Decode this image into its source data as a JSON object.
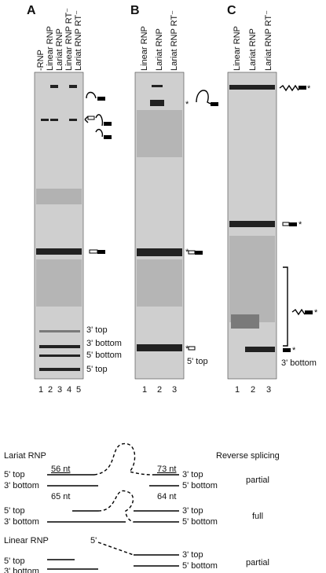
{
  "panels": [
    {
      "label": "A",
      "lanes": [
        "-RNP",
        "Linear RNP",
        "Lariat RNP",
        "Linear RNP RT⁻",
        "Lariat RNP RT⁻"
      ],
      "lane_numbers": [
        1,
        2,
        3,
        4,
        5
      ],
      "annotations": [
        "3' top",
        "3' bottom",
        "5' bottom",
        "5' top"
      ]
    },
    {
      "label": "B",
      "lanes": [
        "Linear RNP",
        "Lariat RNP",
        "Lariat RNP RT⁻"
      ],
      "lane_numbers": [
        1,
        2,
        3
      ],
      "annotations": [
        "*",
        "*",
        "*",
        "5' top"
      ]
    },
    {
      "label": "C",
      "lanes": [
        "Linear RNP",
        "Lariat RNP",
        "Lariat RNP RT⁻"
      ],
      "lane_numbers": [
        1,
        2,
        3
      ],
      "annotations": [
        "*",
        "*",
        "*",
        "*",
        "3' bottom"
      ]
    }
  ],
  "diagram": {
    "rows": [
      {
        "name": "Lariat RNP",
        "left": [
          "5' top",
          "3' bottom"
        ],
        "right": [
          "3' top",
          "5' bottom"
        ],
        "lengths": [
          "56 nt",
          "65 nt",
          "73 nt",
          "64 nt"
        ],
        "result": "partial"
      },
      {
        "left": [
          "5' top",
          "3' bottom"
        ],
        "right": [
          "3' top",
          "5' bottom"
        ],
        "result": "full"
      },
      {
        "name": "Linear RNP",
        "end": "5'",
        "left": [
          "5' top",
          "3' bottom"
        ],
        "right": [
          "3' top",
          "5' bottom"
        ],
        "result": "partial"
      }
    ],
    "header": "Reverse splicing"
  }
}
